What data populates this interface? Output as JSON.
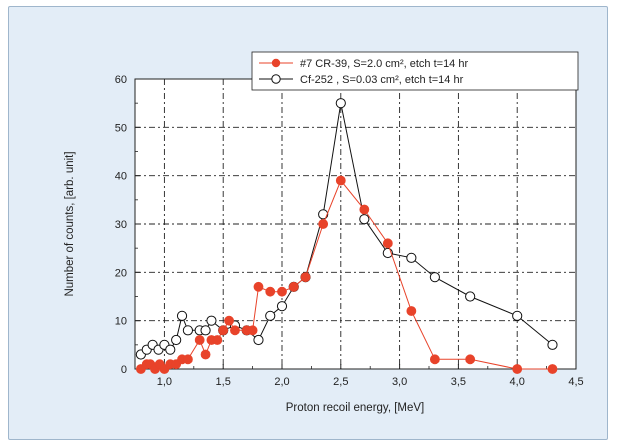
{
  "chart_data": {
    "type": "line",
    "xlabel": "Proton recoil energy, [MeV]",
    "ylabel": "Number of counts, [arb. unit]",
    "xlim": [
      0.75,
      4.5
    ],
    "ylim": [
      0,
      60
    ],
    "x_ticks": [
      1.0,
      1.5,
      2.0,
      2.5,
      3.0,
      3.5,
      4.0,
      4.5
    ],
    "x_tick_labels": [
      "1,0",
      "1,5",
      "2,0",
      "2,5",
      "3,0",
      "3,5",
      "4,0",
      "4,5"
    ],
    "y_ticks": [
      0,
      10,
      20,
      30,
      40,
      50,
      60
    ],
    "y_tick_labels": [
      "0",
      "10",
      "20",
      "30",
      "40",
      "50",
      "60"
    ],
    "grid": true,
    "legend_position": "top-right",
    "series": [
      {
        "name": "#7 CR-39, S=2.0 cm², etch t=14 hr",
        "color": "#e8432a",
        "marker": "filled-circle",
        "points": [
          [
            0.8,
            0
          ],
          [
            0.85,
            1
          ],
          [
            0.88,
            1
          ],
          [
            0.92,
            0
          ],
          [
            0.96,
            1
          ],
          [
            1.0,
            0
          ],
          [
            1.05,
            1
          ],
          [
            1.1,
            1
          ],
          [
            1.15,
            2
          ],
          [
            1.2,
            2
          ],
          [
            1.3,
            6
          ],
          [
            1.35,
            3
          ],
          [
            1.4,
            6
          ],
          [
            1.45,
            6
          ],
          [
            1.5,
            8
          ],
          [
            1.55,
            10
          ],
          [
            1.6,
            8
          ],
          [
            1.7,
            8
          ],
          [
            1.75,
            8
          ],
          [
            1.8,
            17
          ],
          [
            1.9,
            16
          ],
          [
            2.0,
            16
          ],
          [
            2.1,
            17
          ],
          [
            2.2,
            19
          ],
          [
            2.35,
            30
          ],
          [
            2.5,
            39
          ],
          [
            2.7,
            33
          ],
          [
            2.9,
            26
          ],
          [
            3.1,
            12
          ],
          [
            3.3,
            2
          ],
          [
            3.6,
            2
          ],
          [
            4.0,
            0
          ],
          [
            4.3,
            0
          ]
        ]
      },
      {
        "name": "Cf-252 , S=0.03 cm², etch t=14 hr",
        "color": "#111111",
        "marker": "open-circle",
        "points": [
          [
            0.8,
            3
          ],
          [
            0.85,
            4
          ],
          [
            0.9,
            5
          ],
          [
            0.95,
            4
          ],
          [
            1.0,
            5
          ],
          [
            1.05,
            4
          ],
          [
            1.1,
            6
          ],
          [
            1.15,
            11
          ],
          [
            1.2,
            8
          ],
          [
            1.3,
            8
          ],
          [
            1.35,
            8
          ],
          [
            1.4,
            10
          ],
          [
            1.5,
            8
          ],
          [
            1.6,
            9
          ],
          [
            1.7,
            8
          ],
          [
            1.8,
            6
          ],
          [
            1.9,
            11
          ],
          [
            2.0,
            13
          ],
          [
            2.1,
            17
          ],
          [
            2.2,
            19
          ],
          [
            2.35,
            32
          ],
          [
            2.5,
            55
          ],
          [
            2.7,
            31
          ],
          [
            2.9,
            24
          ],
          [
            3.1,
            23
          ],
          [
            3.3,
            19
          ],
          [
            3.6,
            15
          ],
          [
            4.0,
            11
          ],
          [
            4.3,
            5
          ]
        ]
      }
    ]
  }
}
